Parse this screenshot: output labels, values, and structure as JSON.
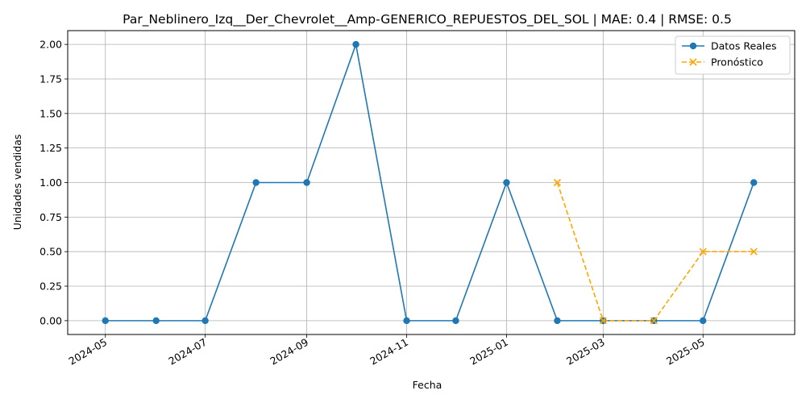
{
  "chart_data": {
    "type": "line",
    "title": "Par_Neblinero_Izq__Der_Chevrolet__Amp-GENERICO_REPUESTOS_DEL_SOL | MAE: 0.4 | RMSE: 0.5",
    "xlabel": "Fecha",
    "ylabel": "Unidades vendidas",
    "x_ticks": [
      "2024-05",
      "2024-07",
      "2024-09",
      "2024-11",
      "2025-01",
      "2025-03",
      "2025-05"
    ],
    "y_ticks": [
      "0.00",
      "0.25",
      "0.50",
      "0.75",
      "1.00",
      "1.25",
      "1.50",
      "1.75",
      "2.00"
    ],
    "ylim": [
      -0.1,
      2.1
    ],
    "grid": true,
    "legend_position": "top-right",
    "series": [
      {
        "name": "Datos Reales",
        "color": "#1f77b4",
        "style": "solid",
        "marker": "circle",
        "points": [
          {
            "x": "2024-05-01",
            "y": 0
          },
          {
            "x": "2024-06-01",
            "y": 0
          },
          {
            "x": "2024-07-01",
            "y": 0
          },
          {
            "x": "2024-08-01",
            "y": 1
          },
          {
            "x": "2024-09-01",
            "y": 1
          },
          {
            "x": "2024-10-01",
            "y": 2
          },
          {
            "x": "2024-11-01",
            "y": 0
          },
          {
            "x": "2024-12-01",
            "y": 0
          },
          {
            "x": "2025-01-01",
            "y": 1
          },
          {
            "x": "2025-02-01",
            "y": 0
          },
          {
            "x": "2025-03-01",
            "y": 0
          },
          {
            "x": "2025-04-01",
            "y": 0
          },
          {
            "x": "2025-05-01",
            "y": 0
          },
          {
            "x": "2025-06-01",
            "y": 1
          }
        ]
      },
      {
        "name": "Pronóstico",
        "color": "#ffa500",
        "style": "dashed",
        "marker": "x",
        "points": [
          {
            "x": "2025-02-01",
            "y": 1
          },
          {
            "x": "2025-03-01",
            "y": 0
          },
          {
            "x": "2025-04-01",
            "y": 0
          },
          {
            "x": "2025-05-01",
            "y": 0.5
          },
          {
            "x": "2025-06-01",
            "y": 0.5
          }
        ]
      }
    ]
  }
}
